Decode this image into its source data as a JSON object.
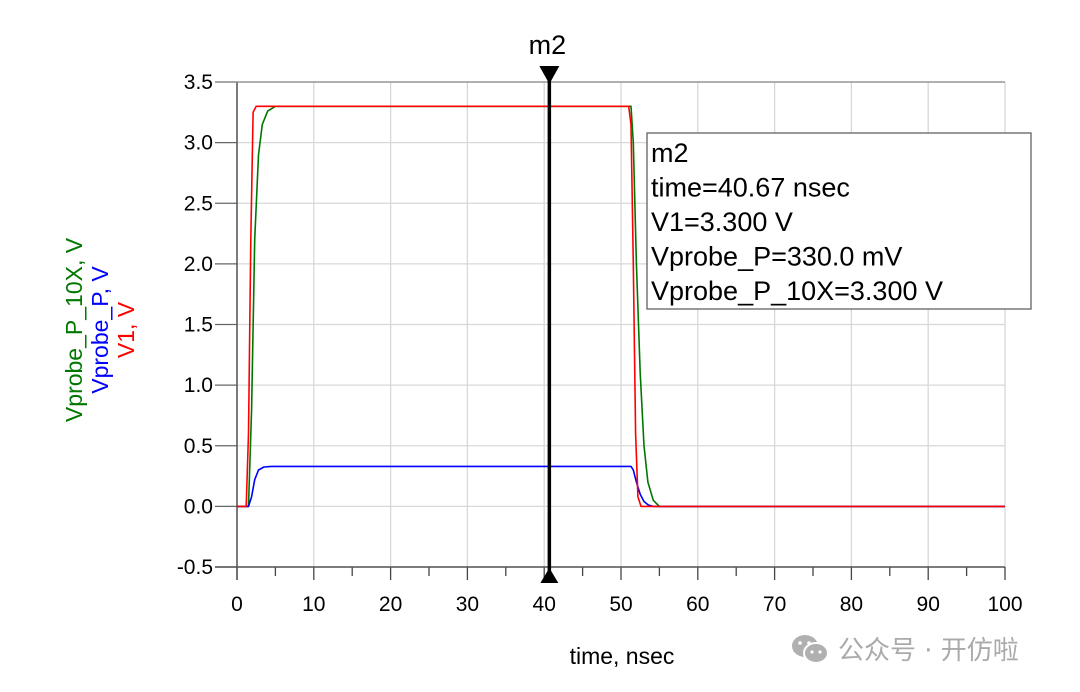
{
  "chart_data": {
    "type": "line",
    "xlabel": "time, nsec",
    "ylabels": [
      {
        "text": "Vprobe_P_10X, V",
        "color": "#007700"
      },
      {
        "text": "Vprobe_P, V",
        "color": "#0000ff"
      },
      {
        "text": "V1, V",
        "color": "#ff0000"
      }
    ],
    "xlim": [
      0,
      100
    ],
    "ylim": [
      -0.5,
      3.5
    ],
    "xticks": [
      "0",
      "10",
      "20",
      "30",
      "40",
      "50",
      "60",
      "70",
      "80",
      "90",
      "100"
    ],
    "yticks": [
      "3.5",
      "3.0",
      "2.5",
      "2.0",
      "1.5",
      "1.0",
      "0.5",
      "0.0",
      "-0.5"
    ],
    "grid": true,
    "series": [
      {
        "name": "V1",
        "color": "#ff0000",
        "points": [
          [
            0,
            0
          ],
          [
            1.2,
            0
          ],
          [
            1.5,
            0.6
          ],
          [
            1.8,
            2.2
          ],
          [
            2.1,
            3.25
          ],
          [
            2.5,
            3.3
          ],
          [
            51.0,
            3.3
          ],
          [
            51.3,
            3.15
          ],
          [
            51.6,
            2.0
          ],
          [
            51.9,
            0.6
          ],
          [
            52.2,
            0.08
          ],
          [
            52.6,
            0
          ],
          [
            100,
            0
          ]
        ]
      },
      {
        "name": "Vprobe_P",
        "color": "#0000ff",
        "points": [
          [
            0,
            0
          ],
          [
            1.5,
            0
          ],
          [
            1.9,
            0.08
          ],
          [
            2.3,
            0.22
          ],
          [
            2.8,
            0.3
          ],
          [
            3.5,
            0.325
          ],
          [
            4.5,
            0.33
          ],
          [
            51.3,
            0.33
          ],
          [
            51.6,
            0.3
          ],
          [
            52.0,
            0.2
          ],
          [
            52.5,
            0.1
          ],
          [
            53.0,
            0.04
          ],
          [
            53.6,
            0.01
          ],
          [
            54.2,
            0
          ],
          [
            100,
            0
          ]
        ]
      },
      {
        "name": "Vprobe_P_10X",
        "color": "#007700",
        "points": [
          [
            0,
            0
          ],
          [
            1.5,
            0
          ],
          [
            1.9,
            0.8
          ],
          [
            2.3,
            2.2
          ],
          [
            2.8,
            2.9
          ],
          [
            3.3,
            3.15
          ],
          [
            4.0,
            3.26
          ],
          [
            5.0,
            3.3
          ],
          [
            51.3,
            3.3
          ],
          [
            51.6,
            3.0
          ],
          [
            52.0,
            2.0
          ],
          [
            52.5,
            1.1
          ],
          [
            53.0,
            0.5
          ],
          [
            53.5,
            0.2
          ],
          [
            54.2,
            0.05
          ],
          [
            55,
            0
          ],
          [
            100,
            0
          ]
        ]
      }
    ],
    "marker": {
      "name": "m2",
      "x": 40.67,
      "readout": [
        "m2",
        "time=40.67 nsec",
        "V1=3.300  V",
        "Vprobe_P=330.0 mV",
        "Vprobe_P_10X=3.300  V"
      ]
    }
  },
  "watermark": {
    "icon": "wechat-icon",
    "text": "公众号 · 开仿啦"
  }
}
